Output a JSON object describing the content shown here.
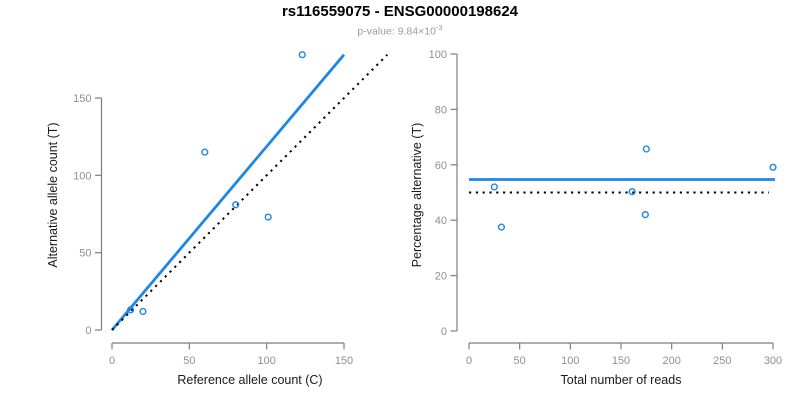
{
  "header": {
    "title": "rs116559075 - ENSG00000198624",
    "subtitle": {
      "text": "p-value: 9.84×10",
      "exponent": "-3"
    }
  },
  "colors": {
    "accent_blue": "#1E87E5",
    "dotted_black": "#000000",
    "axis_line": "#7e7e7e",
    "tick_label": "#8f8f8f",
    "axis_title": "#1a1a1a",
    "subtitle_gray": "#9b9b9b"
  },
  "chart_data": [
    {
      "type": "scatter",
      "title": "",
      "xlabel": "Reference allele count (C)",
      "ylabel": "Alternative allele count (T)",
      "xticks": [
        0,
        50,
        100,
        150
      ],
      "yticks": [
        0,
        50,
        100,
        150
      ],
      "xlim": [
        0,
        150
      ],
      "ylim": [
        0,
        178
      ],
      "grid": false,
      "point_style": "open-circle",
      "points": [
        [
          12,
          13
        ],
        [
          20,
          12
        ],
        [
          60,
          115
        ],
        [
          80,
          81
        ],
        [
          101,
          73
        ],
        [
          123,
          178
        ]
      ],
      "lines": [
        {
          "name": "fit-line",
          "from": [
            0,
            0
          ],
          "to": [
            150,
            178
          ],
          "style": "solid"
        },
        {
          "name": "identity-line",
          "from": [
            0,
            0
          ],
          "to": [
            178,
            178
          ],
          "style": "dotted"
        }
      ]
    },
    {
      "type": "scatter",
      "title": "",
      "xlabel": "Total number of reads",
      "ylabel": "Percentage alternative (T)",
      "xticks": [
        0,
        50,
        100,
        150,
        200,
        250,
        300
      ],
      "yticks": [
        0,
        20,
        40,
        60,
        80,
        100
      ],
      "xlim": [
        0,
        300
      ],
      "ylim": [
        0,
        100
      ],
      "grid": false,
      "point_style": "open-circle",
      "points": [
        [
          25,
          52
        ],
        [
          32,
          37.5
        ],
        [
          161,
          50.3
        ],
        [
          175,
          65.7
        ],
        [
          174,
          42
        ],
        [
          300,
          59.1
        ]
      ],
      "lines": [
        {
          "name": "fit-line",
          "from": [
            0,
            54.7
          ],
          "to": [
            302,
            54.7
          ],
          "style": "solid"
        },
        {
          "name": "identity-line",
          "from": [
            0,
            50
          ],
          "to": [
            296,
            50
          ],
          "style": "dotted"
        }
      ]
    }
  ]
}
